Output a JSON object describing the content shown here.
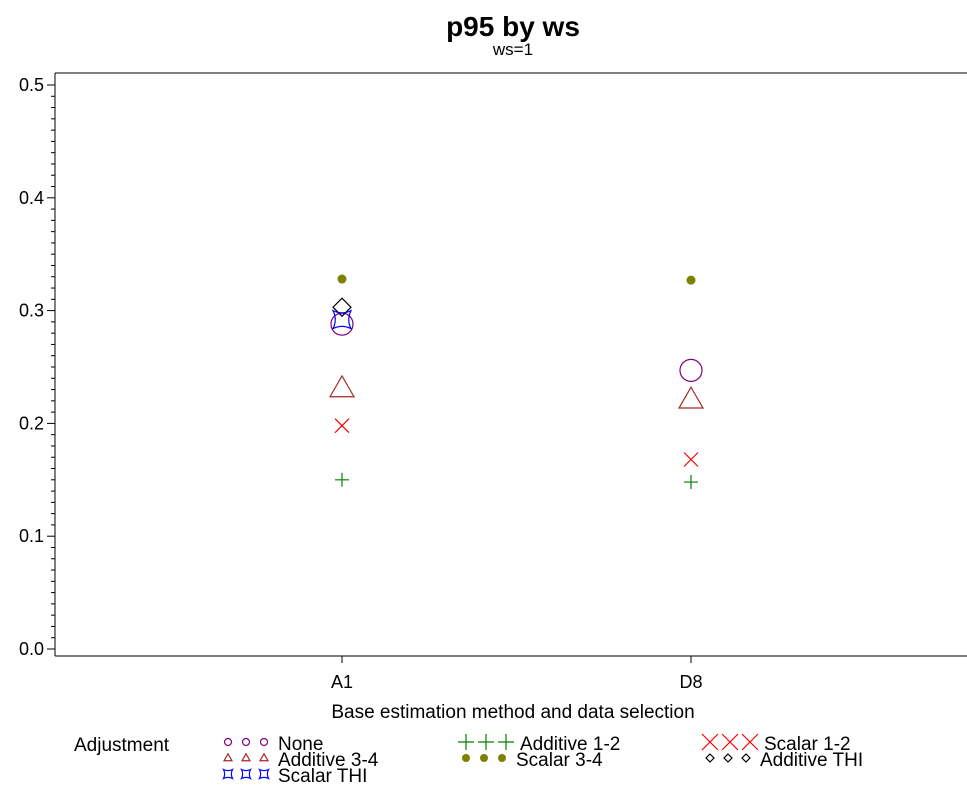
{
  "chart_data": {
    "type": "scatter",
    "title": "p95 by ws",
    "subtitle": "ws=1",
    "xlabel": "Base estimation method and data selection",
    "ylabel": "",
    "categories": [
      "A1",
      "D8"
    ],
    "ylim": [
      0.0,
      0.5
    ],
    "yticks": [
      "0.0",
      "0.1",
      "0.2",
      "0.3",
      "0.4",
      "0.5"
    ],
    "grid": false,
    "legend_title": "Adjustment",
    "legend_position": "bottom",
    "series": [
      {
        "name": "None",
        "marker": "circle",
        "color": "#800080",
        "values": [
          0.288,
          0.247
        ]
      },
      {
        "name": "Additive 1-2",
        "marker": "plus",
        "color": "#008000",
        "values": [
          0.15,
          0.148
        ]
      },
      {
        "name": "Scalar 1-2",
        "marker": "x",
        "color": "#ff0000",
        "values": [
          0.198,
          0.168
        ]
      },
      {
        "name": "Additive 3-4",
        "marker": "triangle",
        "color": "#a52a2a",
        "values": [
          0.231,
          0.221
        ]
      },
      {
        "name": "Scalar 3-4",
        "marker": "dot",
        "color": "#808000",
        "values": [
          0.328,
          0.327
        ]
      },
      {
        "name": "Additive THI",
        "marker": "diamond",
        "color": "#000000",
        "values": [
          0.303,
          null
        ]
      },
      {
        "name": "Scalar THI",
        "marker": "hourglass",
        "color": "#0000ff",
        "values": [
          0.292,
          null
        ]
      }
    ]
  }
}
